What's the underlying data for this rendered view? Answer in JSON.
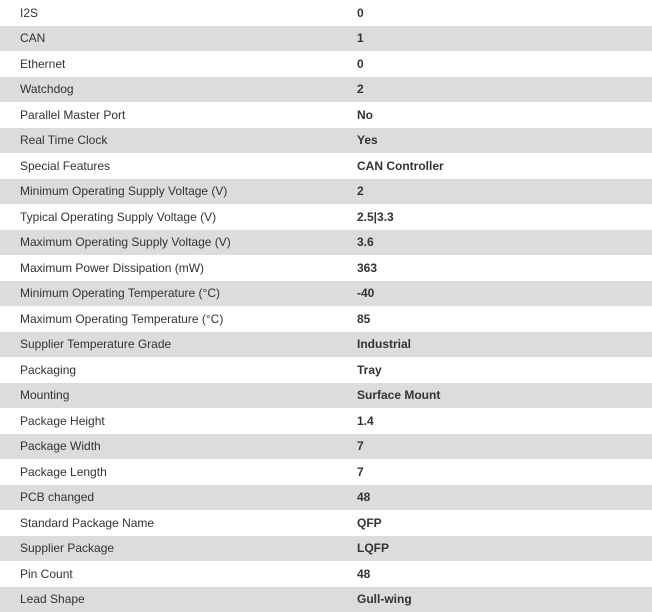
{
  "colors": {
    "stripe_bg": "#dcdcdc",
    "row_bg": "#ffffff",
    "text": "#333333"
  },
  "spec_table": {
    "rows": [
      {
        "label": "I2S",
        "value": "0"
      },
      {
        "label": "CAN",
        "value": "1"
      },
      {
        "label": "Ethernet",
        "value": "0"
      },
      {
        "label": "Watchdog",
        "value": "2"
      },
      {
        "label": "Parallel Master Port",
        "value": "No"
      },
      {
        "label": "Real Time Clock",
        "value": "Yes"
      },
      {
        "label": "Special Features",
        "value": "CAN Controller"
      },
      {
        "label": "Minimum Operating Supply Voltage (V)",
        "value": "2"
      },
      {
        "label": "Typical Operating Supply Voltage (V)",
        "value": "2.5|3.3"
      },
      {
        "label": "Maximum Operating Supply Voltage (V)",
        "value": "3.6"
      },
      {
        "label": "Maximum Power Dissipation (mW)",
        "value": "363"
      },
      {
        "label": "Minimum Operating Temperature (°C)",
        "value": "-40"
      },
      {
        "label": "Maximum Operating Temperature (°C)",
        "value": "85"
      },
      {
        "label": "Supplier Temperature Grade",
        "value": "Industrial"
      },
      {
        "label": "Packaging",
        "value": "Tray"
      },
      {
        "label": "Mounting",
        "value": "Surface Mount"
      },
      {
        "label": "Package Height",
        "value": "1.4"
      },
      {
        "label": "Package Width",
        "value": "7"
      },
      {
        "label": "Package Length",
        "value": "7"
      },
      {
        "label": "PCB changed",
        "value": "48"
      },
      {
        "label": "Standard Package Name",
        "value": "QFP"
      },
      {
        "label": "Supplier Package",
        "value": "LQFP"
      },
      {
        "label": "Pin Count",
        "value": "48"
      },
      {
        "label": "Lead Shape",
        "value": "Gull-wing"
      }
    ]
  }
}
